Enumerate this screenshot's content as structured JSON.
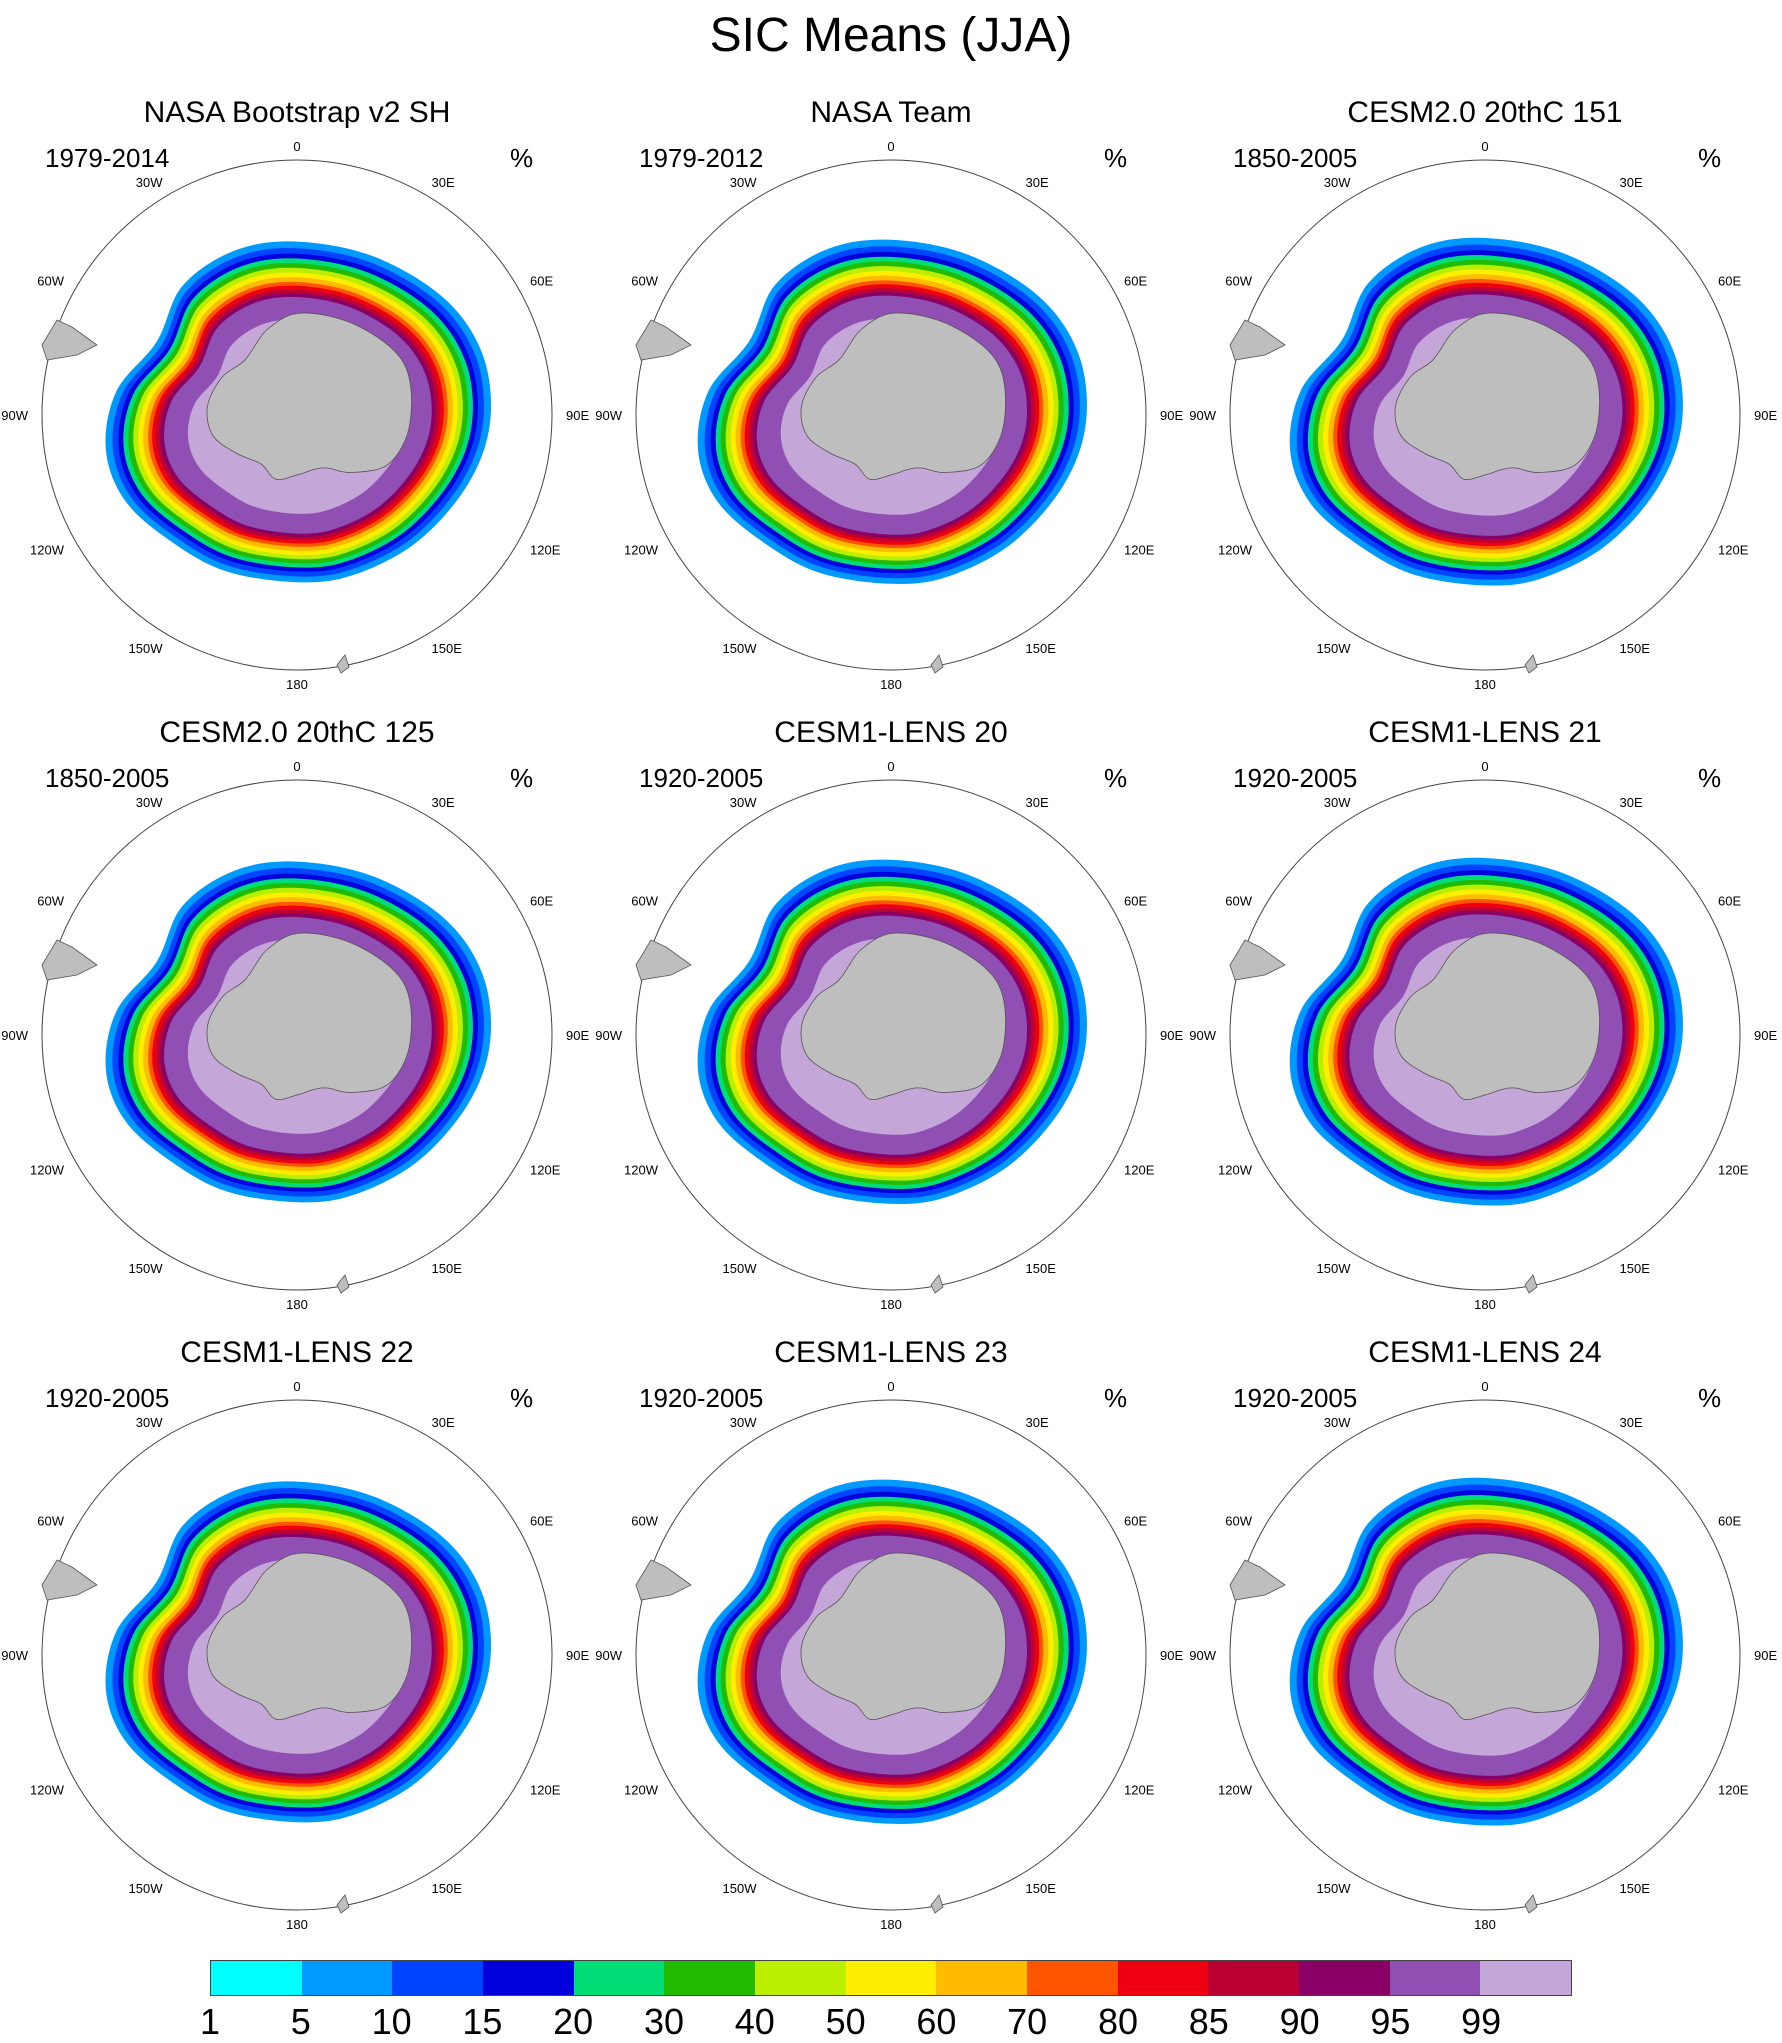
{
  "title": "SIC Means (JJA)",
  "units": "%",
  "longitude_labels": [
    "0",
    "30E",
    "60E",
    "90E",
    "120E",
    "150E",
    "180",
    "150W",
    "120W",
    "90W",
    "60W",
    "30W"
  ],
  "panels": [
    {
      "title": "NASA Bootstrap v2 SH",
      "period": "1979-2014",
      "units": "%"
    },
    {
      "title": "NASA Team",
      "period": "1979-2012",
      "units": "%"
    },
    {
      "title": "CESM2.0 20thC 151",
      "period": "1850-2005",
      "units": "%"
    },
    {
      "title": "CESM2.0 20thC 125",
      "period": "1850-2005",
      "units": "%"
    },
    {
      "title": "CESM1-LENS 20",
      "period": "1920-2005",
      "units": "%"
    },
    {
      "title": "CESM1-LENS 21",
      "period": "1920-2005",
      "units": "%"
    },
    {
      "title": "CESM1-LENS 22",
      "period": "1920-2005",
      "units": "%"
    },
    {
      "title": "CESM1-LENS 23",
      "period": "1920-2005",
      "units": "%"
    },
    {
      "title": "CESM1-LENS 24",
      "period": "1920-2005",
      "units": "%"
    }
  ],
  "colorbar": {
    "labels": [
      "1",
      "5",
      "10",
      "15",
      "20",
      "30",
      "40",
      "50",
      "60",
      "70",
      "80",
      "85",
      "90",
      "95",
      "99"
    ],
    "colors": [
      "#00ffff",
      "#0099ff",
      "#0044ff",
      "#0000dd",
      "#00dd77",
      "#22bb00",
      "#bbee00",
      "#ffee00",
      "#ffbb00",
      "#ff5500",
      "#ee0011",
      "#bb0033",
      "#880066",
      "#8f4fb3",
      "#c5a6d8"
    ]
  },
  "colors": {
    "land": "#bebebe",
    "coastline": "#555555",
    "ocean": "#ffffff"
  }
}
